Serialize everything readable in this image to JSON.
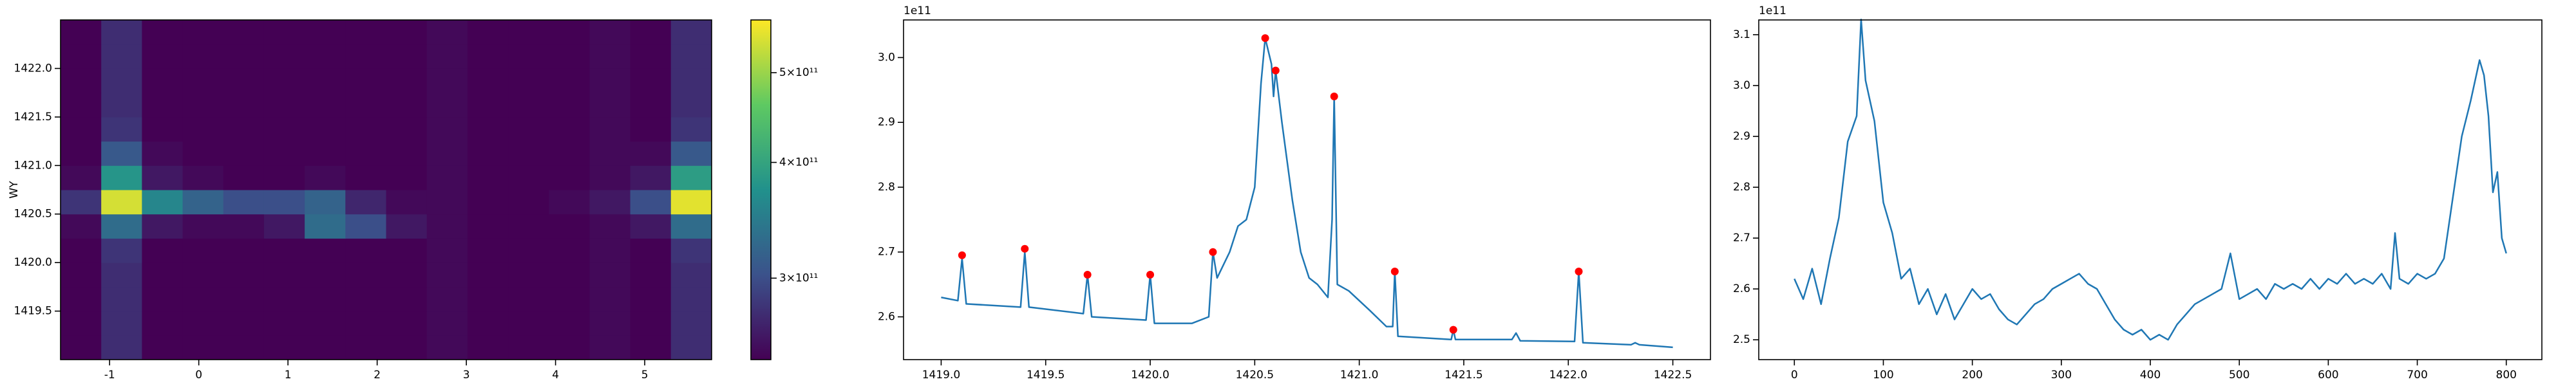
{
  "chart_data": [
    {
      "type": "heatmap",
      "ylabel": "WY",
      "xlim": [
        -1.55,
        5.75
      ],
      "ylim": [
        1419.0,
        1422.5
      ],
      "xticks": [
        -1,
        0,
        1,
        2,
        3,
        4,
        5
      ],
      "yticks": [
        1419.5,
        {
          "value": 1420.0,
          "label": "1420.0"
        },
        1420.5,
        {
          "value": 1421.0,
          "label": "1421.0"
        },
        1421.5,
        {
          "value": 1422.0,
          "label": "1422.0"
        }
      ],
      "color_log_scale": true,
      "clim": [
        245000000000.0,
        570000000000.0
      ],
      "cticks": [
        {
          "value": 300000000000.0,
          "label": "3×10¹¹"
        },
        {
          "value": 400000000000.0,
          "label": "4×10¹¹"
        },
        {
          "value": 500000000000.0,
          "label": "5×10¹¹"
        }
      ],
      "values": [
        [
          245000000000.0,
          275000000000.0,
          245000000000.0,
          242000000000.0,
          242000000000.0,
          242000000000.0,
          242000000000.0,
          242000000000.0,
          245000000000.0,
          250000000000.0,
          242000000000.0,
          242000000000.0,
          245000000000.0,
          250000000000.0,
          245000000000.0,
          275000000000.0
        ],
        [
          245000000000.0,
          275000000000.0,
          245000000000.0,
          242000000000.0,
          242000000000.0,
          242000000000.0,
          242000000000.0,
          242000000000.0,
          245000000000.0,
          250000000000.0,
          242000000000.0,
          242000000000.0,
          245000000000.0,
          250000000000.0,
          245000000000.0,
          275000000000.0
        ],
        [
          245000000000.0,
          275000000000.0,
          245000000000.0,
          242000000000.0,
          242000000000.0,
          242000000000.0,
          242000000000.0,
          242000000000.0,
          245000000000.0,
          250000000000.0,
          242000000000.0,
          242000000000.0,
          245000000000.0,
          250000000000.0,
          245000000000.0,
          275000000000.0
        ],
        [
          245000000000.0,
          275000000000.0,
          245000000000.0,
          242000000000.0,
          242000000000.0,
          242000000000.0,
          242000000000.0,
          242000000000.0,
          245000000000.0,
          250000000000.0,
          242000000000.0,
          242000000000.0,
          245000000000.0,
          250000000000.0,
          245000000000.0,
          275000000000.0
        ],
        [
          245000000000.0,
          280000000000.0,
          245000000000.0,
          242000000000.0,
          242000000000.0,
          242000000000.0,
          245000000000.0,
          245000000000.0,
          245000000000.0,
          250000000000.0,
          242000000000.0,
          242000000000.0,
          245000000000.0,
          250000000000.0,
          245000000000.0,
          280000000000.0
        ],
        [
          250000000000.0,
          330000000000.0,
          260000000000.0,
          250000000000.0,
          250000000000.0,
          260000000000.0,
          330000000000.0,
          300000000000.0,
          260000000000.0,
          250000000000.0,
          242000000000.0,
          242000000000.0,
          245000000000.0,
          250000000000.0,
          260000000000.0,
          330000000000.0
        ],
        [
          280000000000.0,
          540000000000.0,
          360000000000.0,
          320000000000.0,
          300000000000.0,
          300000000000.0,
          320000000000.0,
          270000000000.0,
          250000000000.0,
          250000000000.0,
          242000000000.0,
          245000000000.0,
          250000000000.0,
          260000000000.0,
          300000000000.0,
          550000000000.0
        ],
        [
          250000000000.0,
          380000000000.0,
          260000000000.0,
          250000000000.0,
          245000000000.0,
          245000000000.0,
          250000000000.0,
          245000000000.0,
          245000000000.0,
          250000000000.0,
          242000000000.0,
          242000000000.0,
          245000000000.0,
          250000000000.0,
          260000000000.0,
          390000000000.0
        ],
        [
          245000000000.0,
          310000000000.0,
          250000000000.0,
          242000000000.0,
          242000000000.0,
          242000000000.0,
          242000000000.0,
          242000000000.0,
          245000000000.0,
          250000000000.0,
          242000000000.0,
          242000000000.0,
          245000000000.0,
          250000000000.0,
          250000000000.0,
          310000000000.0
        ],
        [
          245000000000.0,
          280000000000.0,
          245000000000.0,
          242000000000.0,
          242000000000.0,
          242000000000.0,
          242000000000.0,
          242000000000.0,
          245000000000.0,
          250000000000.0,
          242000000000.0,
          242000000000.0,
          245000000000.0,
          250000000000.0,
          245000000000.0,
          280000000000.0
        ],
        [
          245000000000.0,
          275000000000.0,
          245000000000.0,
          242000000000.0,
          242000000000.0,
          242000000000.0,
          242000000000.0,
          242000000000.0,
          245000000000.0,
          250000000000.0,
          242000000000.0,
          242000000000.0,
          245000000000.0,
          250000000000.0,
          245000000000.0,
          275000000000.0
        ],
        [
          245000000000.0,
          275000000000.0,
          245000000000.0,
          242000000000.0,
          242000000000.0,
          242000000000.0,
          242000000000.0,
          242000000000.0,
          245000000000.0,
          250000000000.0,
          242000000000.0,
          242000000000.0,
          245000000000.0,
          250000000000.0,
          245000000000.0,
          275000000000.0
        ],
        [
          245000000000.0,
          275000000000.0,
          245000000000.0,
          242000000000.0,
          242000000000.0,
          242000000000.0,
          242000000000.0,
          242000000000.0,
          245000000000.0,
          250000000000.0,
          242000000000.0,
          242000000000.0,
          245000000000.0,
          250000000000.0,
          245000000000.0,
          275000000000.0
        ],
        [
          245000000000.0,
          275000000000.0,
          245000000000.0,
          242000000000.0,
          242000000000.0,
          242000000000.0,
          242000000000.0,
          242000000000.0,
          245000000000.0,
          250000000000.0,
          242000000000.0,
          242000000000.0,
          245000000000.0,
          250000000000.0,
          245000000000.0,
          275000000000.0
        ]
      ]
    },
    {
      "type": "line",
      "offset_label": "1e11",
      "color": "#1f77b4",
      "xlim": [
        1418.82,
        1422.68
      ],
      "ylim": [
        2.534,
        3.058
      ],
      "xticks": [
        {
          "value": 1419.0,
          "label": "1419.0"
        },
        1419.5,
        {
          "value": 1420.0,
          "label": "1420.0"
        },
        1420.5,
        {
          "value": 1421.0,
          "label": "1421.0"
        },
        1421.5,
        {
          "value": 1422.0,
          "label": "1422.0"
        },
        1422.5
      ],
      "yticks": [
        2.6,
        2.7,
        2.8,
        2.9,
        {
          "value": 3.0,
          "label": "3.0"
        }
      ],
      "x": [
        1419.0,
        1419.08,
        1419.1,
        1419.12,
        1419.38,
        1419.4,
        1419.42,
        1419.68,
        1419.7,
        1419.72,
        1419.98,
        1420.0,
        1420.02,
        1420.2,
        1420.28,
        1420.3,
        1420.32,
        1420.38,
        1420.42,
        1420.46,
        1420.5,
        1420.53,
        1420.55,
        1420.58,
        1420.59,
        1420.6,
        1420.63,
        1420.68,
        1420.72,
        1420.76,
        1420.8,
        1420.85,
        1420.87,
        1420.88,
        1420.895,
        1420.95,
        1421.05,
        1421.13,
        1421.16,
        1421.17,
        1421.185,
        1421.44,
        1421.45,
        1421.46,
        1421.73,
        1421.75,
        1421.77,
        1422.03,
        1422.05,
        1422.07,
        1422.3,
        1422.32,
        1422.34,
        1422.5
      ],
      "values": [
        2.63,
        2.625,
        2.69,
        2.62,
        2.615,
        2.7,
        2.615,
        2.605,
        2.665,
        2.6,
        2.595,
        2.665,
        2.59,
        2.59,
        2.6,
        2.7,
        2.66,
        2.7,
        2.74,
        2.75,
        2.8,
        2.96,
        3.03,
        2.99,
        2.94,
        2.98,
        2.9,
        2.78,
        2.7,
        2.66,
        2.65,
        2.63,
        2.75,
        2.94,
        2.65,
        2.64,
        2.61,
        2.585,
        2.585,
        2.67,
        2.57,
        2.565,
        2.58,
        2.565,
        2.565,
        2.575,
        2.563,
        2.562,
        2.67,
        2.56,
        2.557,
        2.56,
        2.557,
        2.553
      ],
      "peaks": {
        "color": "#ff0000",
        "x": [
          1419.1,
          1419.4,
          1419.7,
          1420.0,
          1420.3,
          1420.55,
          1420.6,
          1420.88,
          1421.17,
          1421.45,
          1422.05
        ],
        "values": [
          2.695,
          2.705,
          2.665,
          2.665,
          2.7,
          3.03,
          2.98,
          2.94,
          2.67,
          2.58,
          2.67
        ]
      }
    },
    {
      "type": "line",
      "offset_label": "1e11",
      "color": "#1f77b4",
      "xlim": [
        -40,
        840
      ],
      "ylim": [
        2.461,
        3.129
      ],
      "xticks": [
        0,
        100,
        200,
        300,
        400,
        500,
        600,
        700,
        800
      ],
      "yticks": [
        2.5,
        2.6,
        2.7,
        2.8,
        2.9,
        {
          "value": 3.0,
          "label": "3.0"
        },
        3.1
      ],
      "x": [
        0,
        10,
        20,
        30,
        40,
        50,
        60,
        70,
        75,
        80,
        90,
        100,
        110,
        120,
        130,
        140,
        150,
        160,
        170,
        180,
        190,
        200,
        210,
        220,
        230,
        240,
        250,
        260,
        270,
        280,
        290,
        300,
        310,
        320,
        330,
        340,
        350,
        360,
        370,
        380,
        390,
        400,
        410,
        420,
        430,
        440,
        450,
        460,
        470,
        480,
        490,
        500,
        510,
        520,
        530,
        540,
        550,
        560,
        570,
        580,
        590,
        600,
        610,
        620,
        630,
        640,
        650,
        660,
        670,
        675,
        680,
        690,
        700,
        710,
        720,
        730,
        740,
        750,
        760,
        770,
        775,
        780,
        785,
        790,
        795,
        800
      ],
      "values": [
        2.62,
        2.58,
        2.64,
        2.57,
        2.66,
        2.74,
        2.89,
        2.94,
        3.13,
        3.01,
        2.93,
        2.77,
        2.71,
        2.62,
        2.64,
        2.57,
        2.6,
        2.55,
        2.59,
        2.54,
        2.57,
        2.6,
        2.58,
        2.59,
        2.56,
        2.54,
        2.53,
        2.55,
        2.57,
        2.58,
        2.6,
        2.61,
        2.62,
        2.63,
        2.61,
        2.6,
        2.57,
        2.54,
        2.52,
        2.51,
        2.52,
        2.5,
        2.51,
        2.5,
        2.53,
        2.55,
        2.57,
        2.58,
        2.59,
        2.6,
        2.67,
        2.58,
        2.59,
        2.6,
        2.58,
        2.61,
        2.6,
        2.61,
        2.6,
        2.62,
        2.6,
        2.62,
        2.61,
        2.63,
        2.61,
        2.62,
        2.61,
        2.63,
        2.6,
        2.71,
        2.62,
        2.61,
        2.63,
        2.62,
        2.63,
        2.66,
        2.78,
        2.9,
        2.97,
        3.05,
        3.02,
        2.94,
        2.79,
        2.83,
        2.7,
        2.67
      ]
    }
  ]
}
